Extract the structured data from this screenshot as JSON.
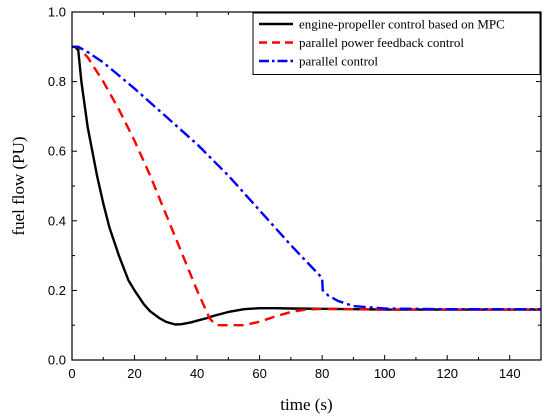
{
  "chart_data": {
    "type": "line",
    "xlabel": "time (s)",
    "ylabel": "fuel flow (PU)",
    "xlim": [
      0,
      150
    ],
    "ylim": [
      0,
      1.0
    ],
    "xticks": [
      0,
      20,
      40,
      60,
      80,
      100,
      120,
      140
    ],
    "yticks": [
      0.0,
      0.2,
      0.4,
      0.6,
      0.8,
      1.0
    ],
    "xtick_labels": [
      "0",
      "20",
      "40",
      "60",
      "80",
      "100",
      "120",
      "140"
    ],
    "ytick_labels": [
      "0.0",
      "0.2",
      "0.4",
      "0.6",
      "0.8",
      "1.0"
    ],
    "grid": false,
    "legend_position": "top-right",
    "series": [
      {
        "name": "engine-propeller control based on MPC",
        "color": "#000000",
        "dash": "solid",
        "x": [
          0,
          1,
          2,
          3,
          5,
          8,
          10,
          12,
          15,
          18,
          20,
          23,
          25,
          28,
          30,
          33,
          35,
          38,
          40,
          43,
          45,
          50,
          55,
          60,
          65,
          70,
          80,
          90,
          100,
          120,
          150
        ],
        "y": [
          0.9,
          0.9,
          0.89,
          0.8,
          0.67,
          0.53,
          0.45,
          0.38,
          0.3,
          0.23,
          0.2,
          0.16,
          0.14,
          0.12,
          0.11,
          0.102,
          0.103,
          0.108,
          0.113,
          0.12,
          0.126,
          0.138,
          0.146,
          0.149,
          0.149,
          0.148,
          0.147,
          0.146,
          0.145,
          0.145,
          0.145
        ]
      },
      {
        "name": "parallel power feedback control",
        "color": "#ff0000",
        "dash": "dashed",
        "x": [
          0,
          2,
          5,
          10,
          15,
          20,
          25,
          30,
          35,
          40,
          44,
          46,
          50,
          55,
          60,
          65,
          70,
          75,
          80,
          90,
          100,
          120,
          150
        ],
        "y": [
          0.9,
          0.9,
          0.87,
          0.8,
          0.72,
          0.63,
          0.53,
          0.42,
          0.31,
          0.2,
          0.12,
          0.1,
          0.1,
          0.1,
          0.11,
          0.125,
          0.138,
          0.145,
          0.147,
          0.146,
          0.145,
          0.145,
          0.145
        ]
      },
      {
        "name": "parallel control",
        "color": "#0000ff",
        "dash": "dashdot",
        "x": [
          0,
          2,
          5,
          10,
          20,
          30,
          40,
          50,
          60,
          70,
          79,
          80,
          80.2,
          82,
          85,
          90,
          100,
          120,
          150
        ],
        "y": [
          0.9,
          0.9,
          0.885,
          0.855,
          0.78,
          0.7,
          0.62,
          0.53,
          0.43,
          0.33,
          0.245,
          0.235,
          0.2,
          0.185,
          0.17,
          0.155,
          0.148,
          0.146,
          0.146
        ]
      }
    ]
  }
}
